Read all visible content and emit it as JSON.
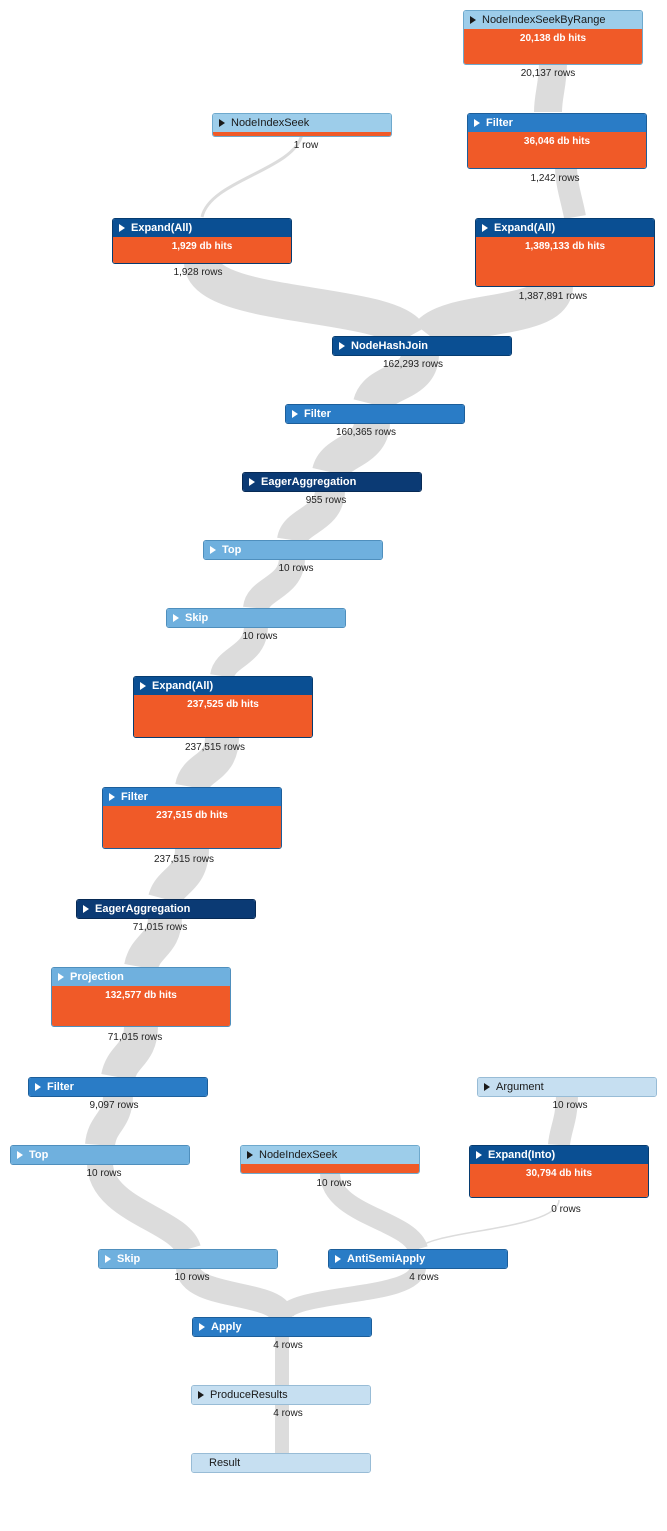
{
  "plan": {
    "operators": {
      "node_index_seek_by_range": {
        "label": "NodeIndexSeekByRange",
        "hits": "20,138 db hits",
        "rows": "20,137 rows"
      },
      "node_index_seek_top": {
        "label": "NodeIndexSeek",
        "rows": "1 row"
      },
      "filter_right": {
        "label": "Filter",
        "hits": "36,046 db hits",
        "rows": "1,242 rows"
      },
      "expand_all_left": {
        "label": "Expand(All)",
        "hits": "1,929 db hits",
        "rows": "1,928 rows"
      },
      "expand_all_right": {
        "label": "Expand(All)",
        "hits": "1,389,133 db hits",
        "rows": "1,387,891 rows"
      },
      "node_hash_join": {
        "label": "NodeHashJoin",
        "rows": "162,293 rows"
      },
      "filter_1": {
        "label": "Filter",
        "rows": "160,365 rows"
      },
      "eager_aggregation_1": {
        "label": "EagerAggregation",
        "rows": "955 rows"
      },
      "top_1": {
        "label": "Top",
        "rows": "10 rows"
      },
      "skip_1": {
        "label": "Skip",
        "rows": "10 rows"
      },
      "expand_all_mid": {
        "label": "Expand(All)",
        "hits": "237,525 db hits",
        "rows": "237,515 rows"
      },
      "filter_2": {
        "label": "Filter",
        "hits": "237,515 db hits",
        "rows": "237,515 rows"
      },
      "eager_aggregation_2": {
        "label": "EagerAggregation",
        "rows": "71,015 rows"
      },
      "projection": {
        "label": "Projection",
        "hits": "132,577 db hits",
        "rows": "71,015 rows"
      },
      "filter_3": {
        "label": "Filter",
        "rows": "9,097 rows"
      },
      "argument": {
        "label": "Argument",
        "rows": "10 rows"
      },
      "top_2": {
        "label": "Top",
        "rows": "10 rows"
      },
      "node_index_seek_bottom": {
        "label": "NodeIndexSeek",
        "rows": "10 rows"
      },
      "expand_into": {
        "label": "Expand(Into)",
        "hits": "30,794 db hits",
        "rows": "0 rows"
      },
      "skip_2": {
        "label": "Skip",
        "rows": "10 rows"
      },
      "anti_semi_apply": {
        "label": "AntiSemiApply",
        "rows": "4 rows"
      },
      "apply": {
        "label": "Apply",
        "rows": "4 rows"
      },
      "produce_results": {
        "label": "ProduceResults",
        "rows": "4 rows"
      },
      "result": {
        "label": "Result"
      }
    },
    "colors": {
      "hits_bar": "#f05a28",
      "flow": "#dcdcdc",
      "dark": "#0a4f93",
      "darker": "#0b3a74",
      "mid": "#2a7cc6",
      "light": "#6fb0de",
      "pale": "#9dcdea",
      "paler": "#c6dff1"
    }
  }
}
